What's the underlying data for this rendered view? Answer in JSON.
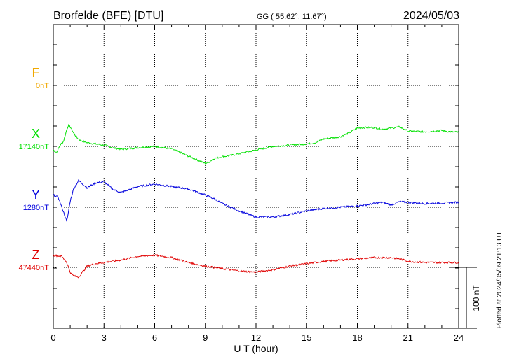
{
  "header": {
    "station": "Brorfelde (BFE)  [DTU]",
    "coords": "GG ( 55.62°,  11.67°)",
    "date": "2024/05/03"
  },
  "footer_note": "Plotted at 2024/05/09 21:13 UT",
  "scale_bar_label": "100 nT",
  "colors": {
    "F": "#f0a800",
    "X": "#00e000",
    "Y": "#0000dd",
    "Z": "#e00000",
    "axis": "#000000"
  },
  "chart_data": {
    "type": "line",
    "title": "Brorfelde (BFE)  [DTU]",
    "xlabel": "U T (hour)",
    "xlim": [
      0,
      24
    ],
    "xticks": [
      0,
      3,
      6,
      9,
      12,
      15,
      18,
      21,
      24
    ],
    "xtick_labels": [
      "0",
      "3",
      "6",
      "9",
      "12",
      "15",
      "18",
      "21",
      "24"
    ],
    "grid": true,
    "scale_nT": 100,
    "series": [
      {
        "name": "F",
        "baseline_label": "0nT",
        "x": [],
        "y": []
      },
      {
        "name": "X",
        "baseline_label": "17140nT",
        "x": [
          0,
          0.2,
          0.4,
          0.6,
          0.8,
          0.9,
          1.0,
          1.2,
          1.4,
          1.6,
          2.0,
          2.5,
          3.0,
          3.5,
          4.0,
          5.0,
          6.0,
          7.0,
          8.0,
          8.5,
          9.0,
          9.2,
          9.5,
          10.0,
          10.5,
          11.0,
          12.0,
          13.0,
          14.0,
          15.0,
          15.5,
          16.0,
          17.0,
          17.5,
          18.0,
          18.5,
          19.0,
          19.5,
          20.0,
          20.5,
          21.0,
          22.0,
          23.0,
          23.5,
          24.0
        ],
        "y": [
          -6,
          -10,
          2,
          8,
          28,
          35,
          32,
          22,
          14,
          10,
          6,
          4,
          2,
          -2,
          -5,
          -2,
          0,
          -4,
          -16,
          -22,
          -28,
          -26,
          -20,
          -17,
          -15,
          -12,
          -6,
          0,
          2,
          4,
          6,
          12,
          16,
          22,
          30,
          31,
          31,
          28,
          30,
          32,
          25,
          24,
          26,
          24,
          23
        ]
      },
      {
        "name": "Y",
        "baseline_label": "1280nT",
        "x": [
          0,
          0.3,
          0.5,
          0.7,
          0.8,
          1.0,
          1.2,
          1.5,
          2.0,
          2.5,
          3.0,
          3.5,
          4.0,
          5.0,
          6.0,
          7.0,
          8.0,
          9.0,
          9.5,
          10.0,
          10.5,
          11.0,
          12.0,
          13.0,
          14.0,
          15.0,
          16.0,
          17.0,
          18.0,
          18.5,
          19.0,
          19.5,
          20.0,
          20.5,
          21.0,
          22.0,
          23.0,
          24.0
        ],
        "y": [
          20,
          16,
          0,
          -15,
          -24,
          10,
          30,
          44,
          32,
          40,
          42,
          30,
          24,
          34,
          38,
          34,
          30,
          20,
          14,
          6,
          0,
          -6,
          -16,
          -16,
          -12,
          -6,
          -2,
          0,
          2,
          4,
          6,
          8,
          4,
          9,
          8,
          6,
          7,
          8
        ]
      },
      {
        "name": "Z",
        "baseline_label": "47440nT",
        "x": [
          0,
          0.5,
          0.8,
          1.0,
          1.2,
          1.5,
          2.0,
          2.5,
          3.0,
          4.0,
          5.0,
          6.0,
          7.0,
          8.0,
          9.0,
          10.0,
          11.0,
          12.0,
          13.0,
          14.0,
          15.0,
          16.0,
          17.0,
          18.0,
          19.0,
          20.0,
          20.5,
          21.0,
          22.0,
          23.0,
          24.0
        ],
        "y": [
          20,
          18,
          8,
          -8,
          -14,
          -16,
          2,
          6,
          8,
          12,
          18,
          20,
          16,
          8,
          2,
          -2,
          -6,
          -8,
          -4,
          2,
          6,
          10,
          12,
          14,
          16,
          16,
          14,
          10,
          8,
          8,
          8
        ]
      }
    ]
  }
}
